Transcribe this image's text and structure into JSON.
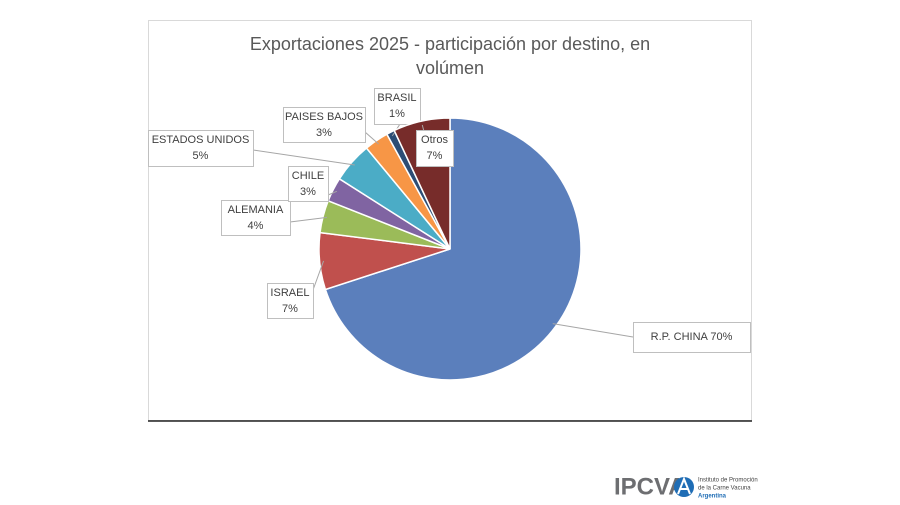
{
  "chart_data": {
    "type": "pie",
    "title": "Exportaciones 2025 - participación por destino, en volúmen",
    "categories": [
      "R.P. CHINA",
      "ISRAEL",
      "ALEMANIA",
      "CHILE",
      "ESTADOS UNIDOS",
      "PAISES BAJOS",
      "BRASIL",
      "Otros"
    ],
    "values": [
      70,
      7,
      4,
      3,
      5,
      3,
      1,
      7
    ],
    "value_labels": [
      "70%",
      "7%",
      "4%",
      "3%",
      "5%",
      "3%",
      "1%",
      "7%"
    ],
    "colors": [
      "#5b7fbc",
      "#c0504d",
      "#9bbb59",
      "#8064a2",
      "#4bacc6",
      "#f79646",
      "#2c4d75",
      "#772c2a"
    ]
  },
  "logo": {
    "name": "IPCVA",
    "line1": "Instituto de Promoción",
    "line2": "de la Carne Vacuna",
    "line3": "Argentina"
  }
}
